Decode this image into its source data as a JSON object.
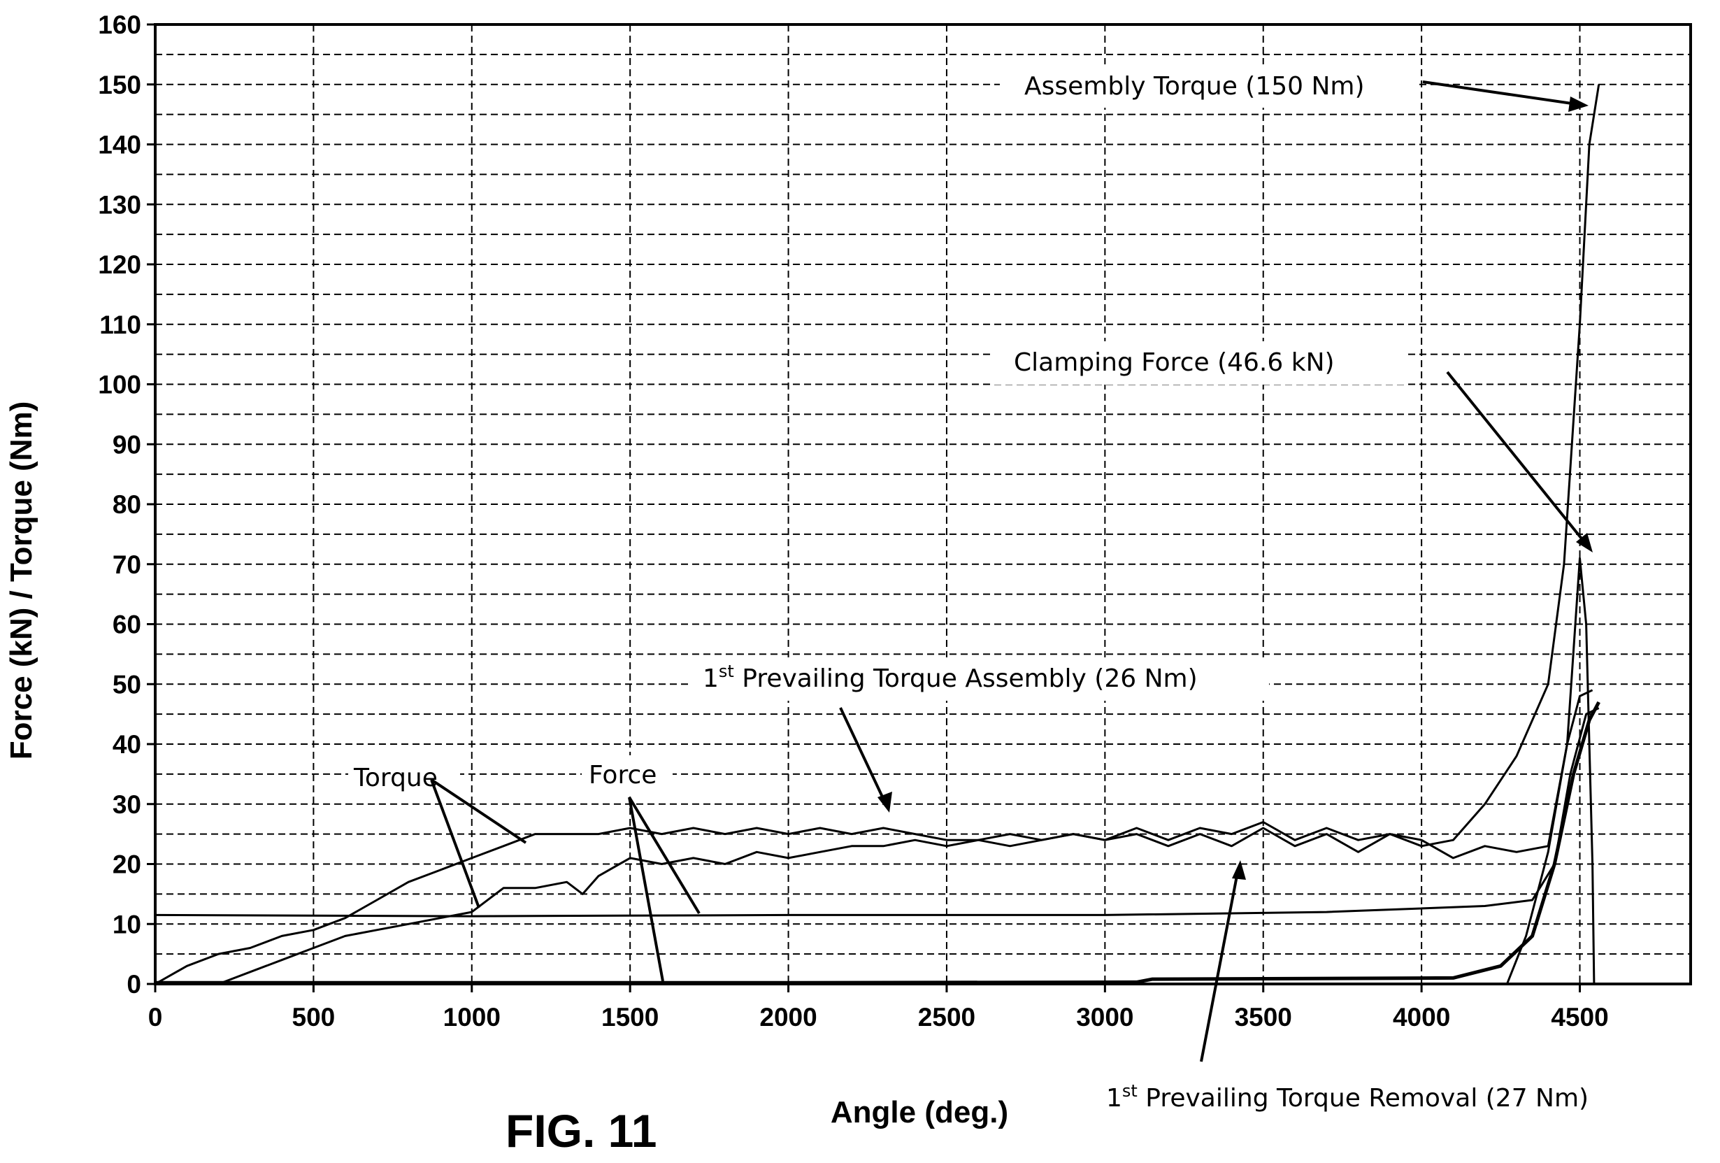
{
  "figure_label": "FIG. 11",
  "chart_data": {
    "type": "line",
    "xlabel": "Angle (deg.)",
    "ylabel": "Force (kN) / Torque (Nm)",
    "xlim": [
      0,
      4850
    ],
    "ylim": [
      0,
      160
    ],
    "xticks": [
      0,
      500,
      1000,
      1500,
      2000,
      2500,
      3000,
      3500,
      4000,
      4500
    ],
    "yticks": [
      0,
      10,
      20,
      30,
      40,
      50,
      60,
      70,
      80,
      90,
      100,
      110,
      120,
      130,
      140,
      150,
      160
    ],
    "grid": true,
    "series": [
      {
        "style": "thin",
        "points": [
          [
            0,
            0
          ],
          [
            100,
            3
          ],
          [
            200,
            5
          ],
          [
            300,
            6
          ],
          [
            400,
            8
          ],
          [
            500,
            9
          ],
          [
            600,
            11
          ],
          [
            700,
            14
          ],
          [
            800,
            17
          ],
          [
            900,
            19
          ],
          [
            1000,
            21
          ],
          [
            1100,
            23
          ],
          [
            1200,
            25
          ],
          [
            1300,
            25
          ],
          [
            1400,
            25
          ],
          [
            1500,
            26
          ],
          [
            1600,
            25
          ],
          [
            1700,
            26
          ],
          [
            1800,
            25
          ],
          [
            1900,
            26
          ],
          [
            2000,
            25
          ],
          [
            2100,
            26
          ],
          [
            2200,
            25
          ],
          [
            2300,
            26
          ],
          [
            2400,
            25
          ],
          [
            2500,
            24
          ],
          [
            2600,
            24
          ],
          [
            2700,
            25
          ],
          [
            2800,
            24
          ],
          [
            2900,
            25
          ],
          [
            3000,
            24
          ],
          [
            3100,
            26
          ],
          [
            3200,
            24
          ],
          [
            3300,
            26
          ],
          [
            3400,
            25
          ],
          [
            3500,
            27
          ],
          [
            3600,
            24
          ],
          [
            3700,
            26
          ],
          [
            3800,
            24
          ],
          [
            3900,
            25
          ],
          [
            4000,
            23
          ],
          [
            4100,
            24
          ],
          [
            4200,
            30
          ],
          [
            4300,
            38
          ],
          [
            4400,
            50
          ],
          [
            4450,
            70
          ],
          [
            4500,
            110
          ],
          [
            4530,
            140
          ],
          [
            4560,
            150
          ]
        ]
      },
      {
        "style": "thin",
        "points": [
          [
            200,
            0
          ],
          [
            300,
            2
          ],
          [
            400,
            4
          ],
          [
            500,
            6
          ],
          [
            600,
            8
          ],
          [
            700,
            9
          ],
          [
            800,
            10
          ],
          [
            900,
            11
          ],
          [
            1000,
            12
          ],
          [
            1100,
            16
          ],
          [
            1200,
            16
          ],
          [
            1300,
            17
          ],
          [
            1350,
            15
          ],
          [
            1400,
            18
          ],
          [
            1500,
            21
          ],
          [
            1600,
            20
          ],
          [
            1700,
            21
          ],
          [
            1800,
            20
          ],
          [
            1900,
            22
          ],
          [
            2000,
            21
          ],
          [
            2100,
            22
          ],
          [
            2200,
            23
          ],
          [
            2300,
            23
          ],
          [
            2400,
            24
          ],
          [
            2500,
            23
          ],
          [
            2600,
            24
          ],
          [
            2700,
            23
          ],
          [
            2800,
            24
          ],
          [
            2900,
            25
          ],
          [
            3000,
            24
          ],
          [
            3100,
            25
          ],
          [
            3200,
            23
          ],
          [
            3300,
            25
          ],
          [
            3400,
            23
          ],
          [
            3500,
            26
          ],
          [
            3600,
            23
          ],
          [
            3700,
            25
          ],
          [
            3800,
            22
          ],
          [
            3900,
            25
          ],
          [
            4000,
            24
          ],
          [
            4100,
            21
          ],
          [
            4200,
            23
          ],
          [
            4300,
            22
          ],
          [
            4400,
            23
          ],
          [
            4460,
            40
          ],
          [
            4500,
            71
          ],
          [
            4520,
            60
          ],
          [
            4540,
            20
          ],
          [
            4545,
            0
          ]
        ]
      },
      {
        "style": "thin",
        "points": [
          [
            0,
            11.5
          ],
          [
            1000,
            11.3
          ],
          [
            2000,
            11.5
          ],
          [
            3000,
            11.5
          ],
          [
            3700,
            12
          ],
          [
            4200,
            13
          ],
          [
            4350,
            14
          ],
          [
            4420,
            20
          ],
          [
            4470,
            35
          ],
          [
            4520,
            45
          ],
          [
            4560,
            46
          ]
        ]
      },
      {
        "style": "thick",
        "points": [
          [
            0,
            0.2
          ],
          [
            1000,
            0.2
          ],
          [
            2000,
            0.2
          ],
          [
            3100,
            0.3
          ],
          [
            3150,
            0.8
          ],
          [
            4100,
            1
          ],
          [
            4250,
            3
          ],
          [
            4350,
            8
          ],
          [
            4420,
            20
          ],
          [
            4480,
            35
          ],
          [
            4530,
            44
          ],
          [
            4560,
            47
          ]
        ]
      },
      {
        "style": "thin",
        "points": [
          [
            4270,
            0
          ],
          [
            4330,
            8
          ],
          [
            4400,
            22
          ],
          [
            4460,
            40
          ],
          [
            4500,
            48
          ],
          [
            4540,
            49
          ]
        ]
      }
    ],
    "annotations": [
      {
        "text": "Assembly Torque (150 Nm)"
      },
      {
        "text": "Clamping Force (46.6 kN)"
      },
      {
        "text_main": "1",
        "sup": "st",
        "text_rest": " Prevailing Torque Assembly (26 Nm)"
      },
      {
        "text_main": "1",
        "sup": "st",
        "text_rest": " Prevailing Torque Removal (27 Nm)"
      },
      {
        "text": "Torque"
      },
      {
        "text": "Force"
      }
    ]
  }
}
